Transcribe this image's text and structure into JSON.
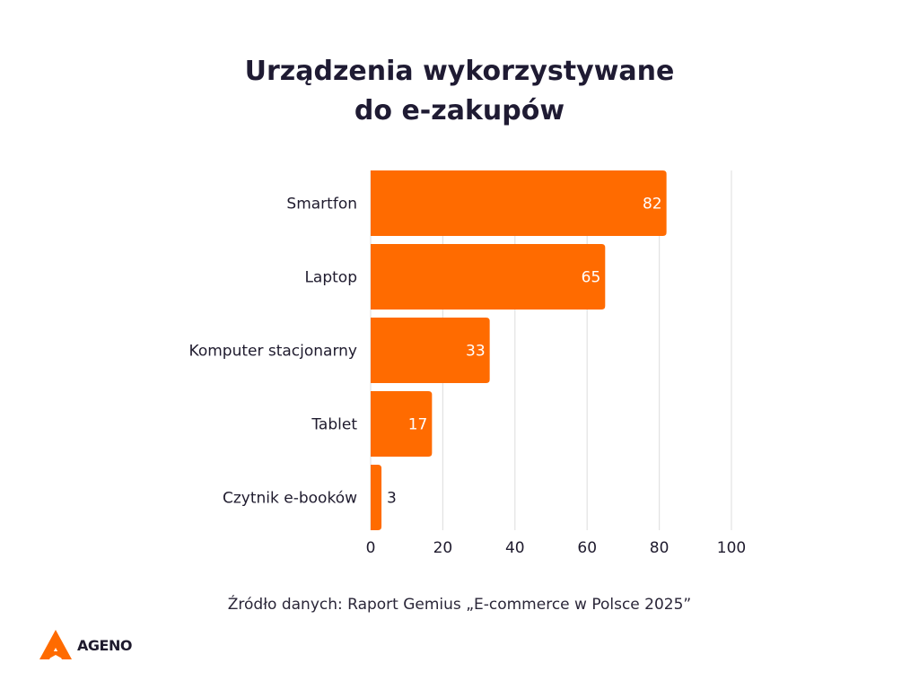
{
  "chart_data": {
    "type": "bar",
    "orientation": "horizontal",
    "title": "Urządzenia wykorzystywane do e-zakupów",
    "title_lines": [
      "Urządzenia wykorzystywane",
      "do e-zakupów"
    ],
    "categories": [
      "Smartfon",
      "Laptop",
      "Komputer stacjonarny",
      "Tablet",
      "Czytnik e-booków"
    ],
    "values": [
      82,
      65,
      33,
      17,
      3
    ],
    "xlabel": "",
    "ylabel": "",
    "xlim": [
      0,
      100
    ],
    "xticks": [
      0,
      20,
      40,
      60,
      80,
      100
    ],
    "grid": true,
    "bar_color": "#ff6b00"
  },
  "source": "Źródło danych: Raport Gemius „E-commerce w Polsce 2025”",
  "logo": {
    "text": "AGENO",
    "color": "#ff6b00"
  }
}
